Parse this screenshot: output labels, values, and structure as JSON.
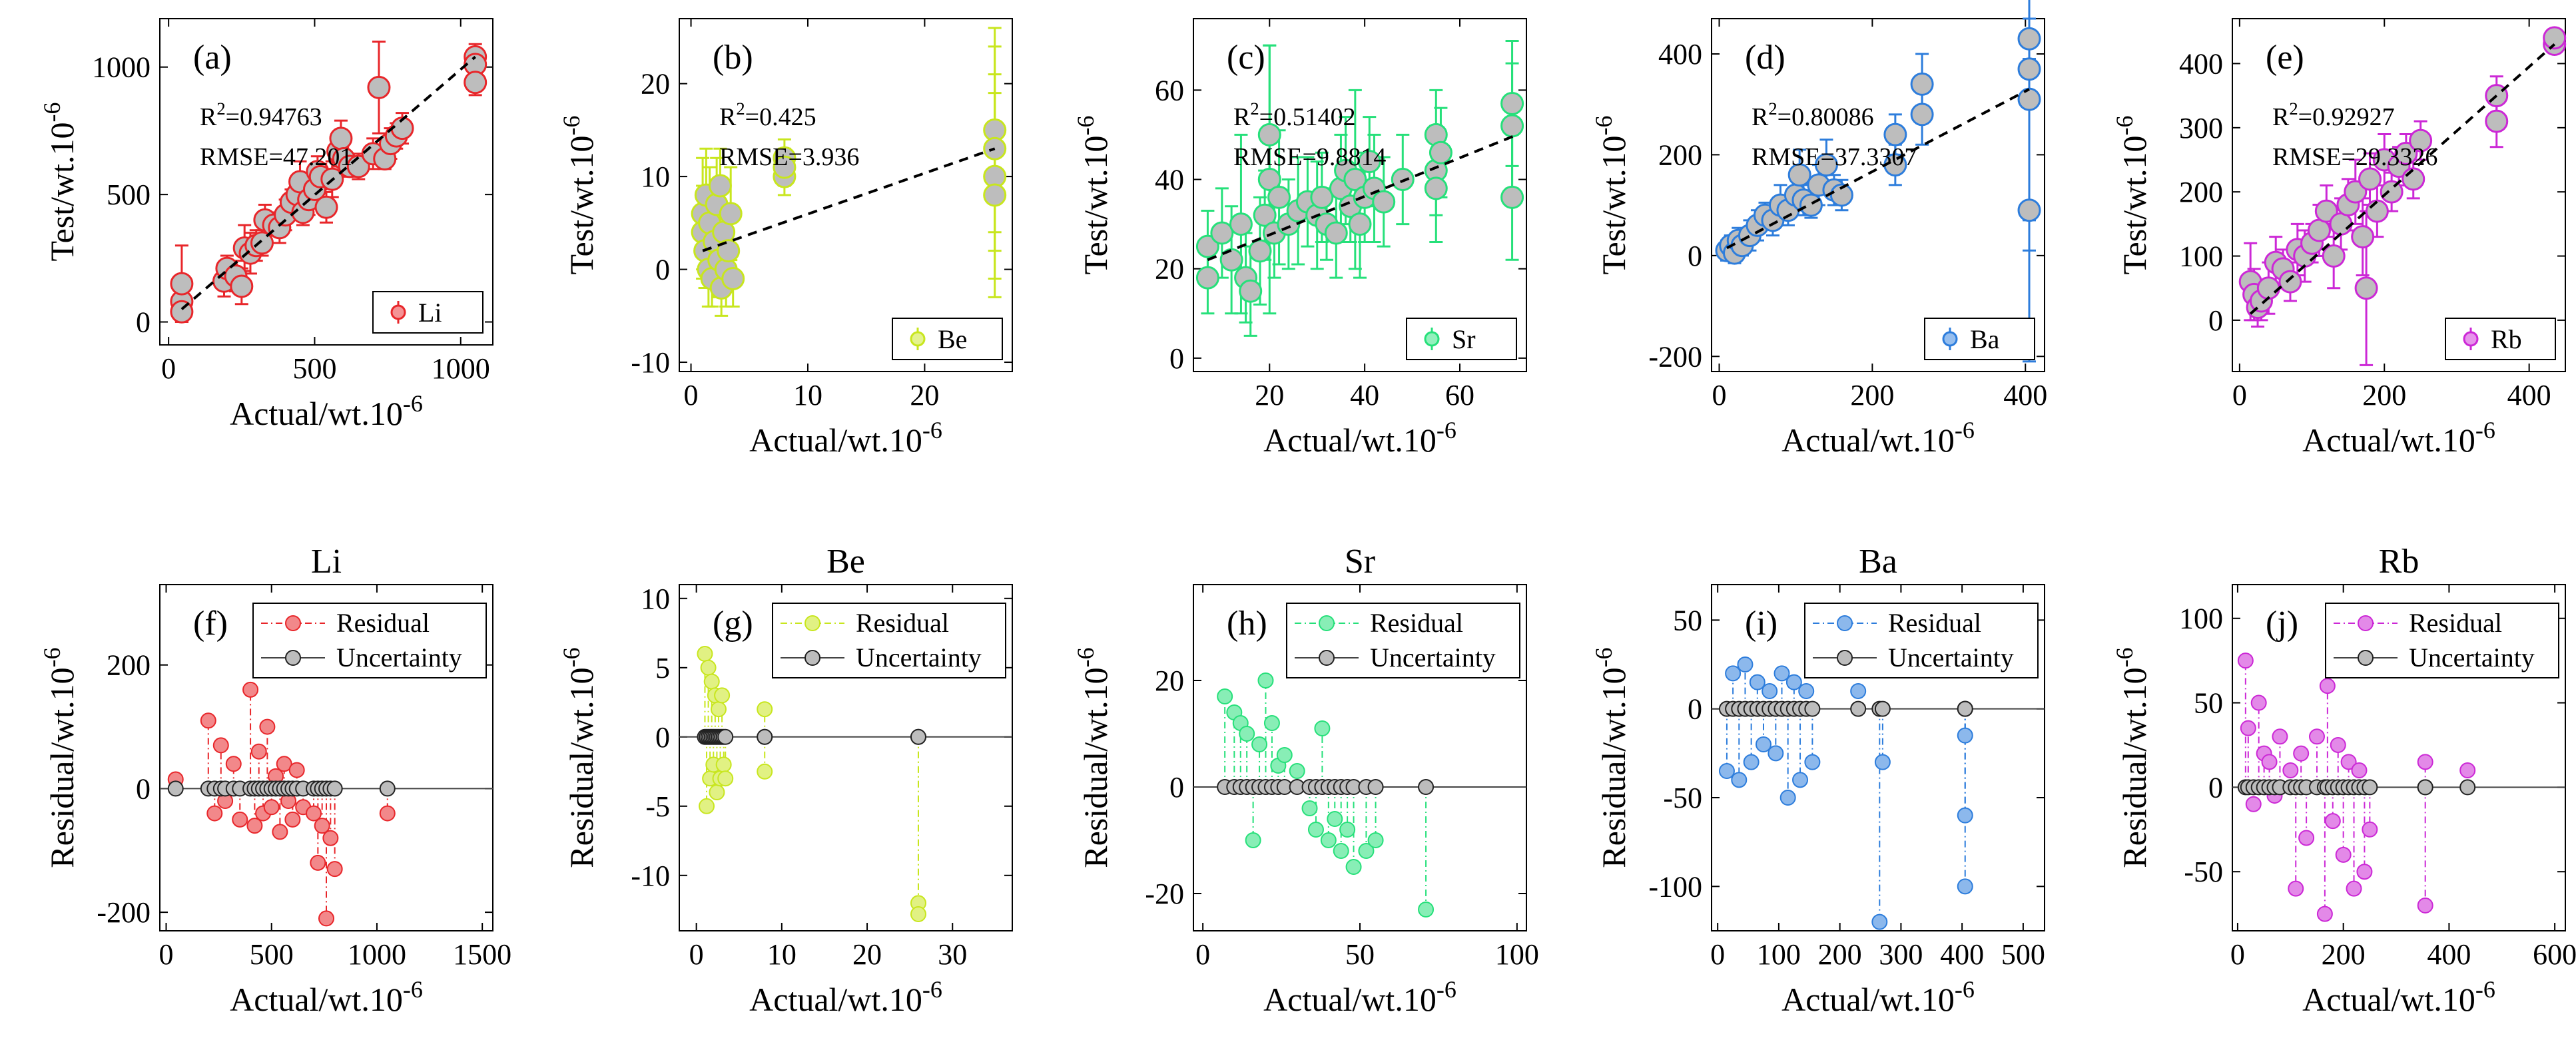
{
  "figure_title": "",
  "chart_data": [
    {
      "type": "scatter",
      "panel": "(a)",
      "element": "Li",
      "color": "#e8262a",
      "xlabel": "Actual/wt.10^-6",
      "ylabel": "Test/wt.10^-6",
      "xlim": [
        -30,
        1110
      ],
      "ylim": [
        -90,
        1190
      ],
      "xticks": [
        0,
        500,
        1000
      ],
      "yticks": [
        0,
        500,
        1000
      ],
      "r2": "R²=0.94763",
      "rmse": "RMSE=47.201",
      "r2_text": "0.94763",
      "rmse_text": "RMSE=47.201",
      "legend": "Li",
      "fit": [
        [
          45,
          50
        ],
        [
          1050,
          1040
        ]
      ],
      "points": [
        [
          45,
          80,
          60
        ],
        [
          45,
          150,
          150
        ],
        [
          45,
          40,
          40
        ],
        [
          190,
          160,
          60
        ],
        [
          200,
          210,
          50
        ],
        [
          230,
          180,
          60
        ],
        [
          250,
          140,
          70
        ],
        [
          260,
          290,
          90
        ],
        [
          280,
          270,
          80
        ],
        [
          300,
          300,
          60
        ],
        [
          320,
          310,
          50
        ],
        [
          330,
          400,
          60
        ],
        [
          360,
          380,
          40
        ],
        [
          380,
          370,
          60
        ],
        [
          400,
          420,
          60
        ],
        [
          420,
          470,
          50
        ],
        [
          440,
          500,
          60
        ],
        [
          450,
          550,
          80
        ],
        [
          460,
          430,
          50
        ],
        [
          480,
          480,
          60
        ],
        [
          500,
          520,
          60
        ],
        [
          510,
          590,
          60
        ],
        [
          520,
          570,
          50
        ],
        [
          540,
          450,
          60
        ],
        [
          560,
          560,
          70
        ],
        [
          580,
          670,
          60
        ],
        [
          590,
          720,
          70
        ],
        [
          600,
          640,
          60
        ],
        [
          620,
          610,
          40
        ],
        [
          650,
          610,
          50
        ],
        [
          700,
          660,
          60
        ],
        [
          720,
          920,
          180
        ],
        [
          740,
          640,
          40
        ],
        [
          760,
          700,
          60
        ],
        [
          780,
          730,
          50
        ],
        [
          800,
          760,
          60
        ],
        [
          1050,
          1040,
          50
        ],
        [
          1050,
          1010,
          50
        ],
        [
          1050,
          940,
          50
        ]
      ]
    },
    {
      "type": "scatter",
      "panel": "(b)",
      "element": "Be",
      "color": "#c8e61e",
      "xlabel": "Actual/wt.10^-6",
      "ylabel": "Test/wt.10^-6",
      "xlim": [
        -1,
        27.5
      ],
      "ylim": [
        -11,
        27
      ],
      "xticks": [
        0,
        10,
        20
      ],
      "yticks": [
        -10,
        0,
        10,
        20
      ],
      "r2": "R²=0.425",
      "rmse": "RMSE=3.936",
      "r2_text": "0.425",
      "rmse_text": "RMSE=3.936",
      "legend": "Be",
      "fit": [
        [
          1,
          2
        ],
        [
          26,
          13
        ]
      ],
      "points": [
        [
          1,
          6,
          6
        ],
        [
          1,
          4,
          5
        ],
        [
          1.2,
          2,
          4
        ],
        [
          1.3,
          8,
          5
        ],
        [
          1.5,
          0,
          4
        ],
        [
          1.6,
          5,
          6
        ],
        [
          1.8,
          -1,
          3
        ],
        [
          2,
          3,
          4
        ],
        [
          2.2,
          7,
          5
        ],
        [
          2.4,
          1,
          4
        ],
        [
          2.6,
          -2,
          3
        ],
        [
          2.8,
          4,
          5
        ],
        [
          3,
          0,
          4
        ],
        [
          3.2,
          2,
          3
        ],
        [
          3.4,
          6,
          5
        ],
        [
          3.6,
          -1,
          3
        ],
        [
          2.5,
          9,
          4
        ],
        [
          8,
          10,
          2
        ],
        [
          8,
          12,
          2
        ],
        [
          8,
          11,
          2
        ],
        [
          26,
          15,
          11
        ],
        [
          26,
          13,
          11
        ],
        [
          26,
          10,
          11
        ],
        [
          26,
          8,
          11
        ]
      ]
    },
    {
      "type": "scatter",
      "panel": "(c)",
      "element": "Sr",
      "color": "#26e07a",
      "xlabel": "Actual/wt.10^-6",
      "ylabel": "Test/wt.10^-6",
      "xlim": [
        4,
        74
      ],
      "ylim": [
        -3,
        76
      ],
      "xticks": [
        20,
        40,
        60
      ],
      "yticks": [
        0,
        20,
        40,
        60
      ],
      "r2": "R²=0.51402",
      "rmse": "RMSE=9.8814",
      "r2_text": "0.51402",
      "rmse_text": "RMSE=9.8814",
      "legend": "Sr",
      "fit": [
        [
          7,
          22
        ],
        [
          72,
          50
        ]
      ],
      "points": [
        [
          7,
          25,
          8
        ],
        [
          7,
          18,
          8
        ],
        [
          10,
          28,
          10
        ],
        [
          12,
          22,
          12
        ],
        [
          14,
          30,
          20
        ],
        [
          15,
          18,
          10
        ],
        [
          16,
          15,
          10
        ],
        [
          18,
          24,
          12
        ],
        [
          19,
          32,
          10
        ],
        [
          20,
          40,
          30
        ],
        [
          20,
          50,
          20
        ],
        [
          21,
          28,
          10
        ],
        [
          22,
          36,
          15
        ],
        [
          24,
          30,
          10
        ],
        [
          26,
          33,
          12
        ],
        [
          28,
          35,
          10
        ],
        [
          30,
          32,
          12
        ],
        [
          31,
          36,
          10
        ],
        [
          32,
          30,
          8
        ],
        [
          34,
          28,
          10
        ],
        [
          35,
          38,
          12
        ],
        [
          36,
          42,
          12
        ],
        [
          37,
          34,
          8
        ],
        [
          38,
          40,
          20
        ],
        [
          39,
          30,
          12
        ],
        [
          40,
          36,
          10
        ],
        [
          41,
          44,
          10
        ],
        [
          42,
          38,
          12
        ],
        [
          44,
          35,
          10
        ],
        [
          48,
          40,
          10
        ],
        [
          55,
          50,
          10
        ],
        [
          55,
          42,
          10
        ],
        [
          55,
          38,
          12
        ],
        [
          56,
          46,
          10
        ],
        [
          71,
          57,
          14
        ],
        [
          71,
          52,
          14
        ],
        [
          71,
          36,
          14
        ]
      ]
    },
    {
      "type": "scatter",
      "panel": "(d)",
      "element": "Ba",
      "color": "#2d7ddc",
      "xlabel": "Actual/wt.10^-6",
      "ylabel": "Test/wt.10^-6",
      "xlim": [
        -10,
        425
      ],
      "ylim": [
        -230,
        470
      ],
      "xticks": [
        0,
        200,
        400
      ],
      "yticks": [
        -200,
        0,
        200,
        400
      ],
      "r2": "R²=0.80086",
      "rmse": "RMSE=37.3307",
      "r2_text": "0.80086",
      "rmse_text": "RMSE=37.3307",
      "legend": "Ba",
      "fit": [
        [
          10,
          15
        ],
        [
          405,
          330
        ]
      ],
      "points": [
        [
          10,
          10,
          20
        ],
        [
          15,
          20,
          20
        ],
        [
          20,
          5,
          20
        ],
        [
          25,
          30,
          25
        ],
        [
          30,
          20,
          20
        ],
        [
          40,
          40,
          30
        ],
        [
          50,
          60,
          30
        ],
        [
          60,
          80,
          25
        ],
        [
          70,
          70,
          30
        ],
        [
          80,
          100,
          40
        ],
        [
          90,
          90,
          30
        ],
        [
          100,
          120,
          40
        ],
        [
          105,
          160,
          50
        ],
        [
          110,
          110,
          30
        ],
        [
          120,
          100,
          25
        ],
        [
          130,
          140,
          40
        ],
        [
          140,
          180,
          50
        ],
        [
          150,
          130,
          30
        ],
        [
          160,
          120,
          30
        ],
        [
          230,
          180,
          40
        ],
        [
          230,
          240,
          40
        ],
        [
          265,
          280,
          60
        ],
        [
          265,
          340,
          60
        ],
        [
          405,
          430,
          40
        ],
        [
          405,
          370,
          300
        ],
        [
          405,
          310,
          300
        ],
        [
          405,
          90,
          300
        ]
      ]
    },
    {
      "type": "scatter",
      "panel": "(e)",
      "element": "Rb",
      "color": "#cc28d6",
      "xlabel": "Actual/wt.10^-6",
      "ylabel": "Test/wt.10^-6",
      "xlim": [
        -10,
        450
      ],
      "ylim": [
        -80,
        470
      ],
      "xticks": [
        0,
        200,
        400
      ],
      "yticks": [
        0,
        100,
        200,
        300,
        400
      ],
      "r2": "R²=0.92927",
      "rmse": "RMSE=29.3326",
      "r2_text": "0.92927",
      "rmse_text": "RMSE=29.3326",
      "legend": "Rb",
      "fit": [
        [
          15,
          10
        ],
        [
          435,
          430
        ]
      ],
      "points": [
        [
          15,
          60,
          60
        ],
        [
          20,
          40,
          40
        ],
        [
          25,
          20,
          30
        ],
        [
          30,
          30,
          30
        ],
        [
          40,
          50,
          40
        ],
        [
          50,
          90,
          40
        ],
        [
          60,
          80,
          30
        ],
        [
          70,
          60,
          30
        ],
        [
          80,
          110,
          40
        ],
        [
          90,
          100,
          40
        ],
        [
          100,
          120,
          30
        ],
        [
          110,
          140,
          40
        ],
        [
          120,
          170,
          40
        ],
        [
          130,
          100,
          50
        ],
        [
          140,
          150,
          40
        ],
        [
          150,
          180,
          40
        ],
        [
          160,
          200,
          50
        ],
        [
          170,
          130,
          60
        ],
        [
          175,
          50,
          120
        ],
        [
          180,
          220,
          40
        ],
        [
          190,
          170,
          40
        ],
        [
          200,
          250,
          40
        ],
        [
          210,
          200,
          30
        ],
        [
          220,
          240,
          30
        ],
        [
          230,
          260,
          30
        ],
        [
          240,
          220,
          30
        ],
        [
          250,
          280,
          30
        ],
        [
          355,
          350,
          30
        ],
        [
          355,
          310,
          40
        ],
        [
          435,
          430,
          10
        ],
        [
          435,
          440,
          10
        ]
      ]
    },
    {
      "type": "scatter",
      "panel": "(f)",
      "element": "Li",
      "title": "Li",
      "color": "#e8262a",
      "xlabel": "Actual/wt.10^-6",
      "ylabel": "Residual/wt.10^-6",
      "xlim": [
        -30,
        1550
      ],
      "ylim": [
        -230,
        330
      ],
      "xticks": [
        0,
        500,
        1000,
        1500
      ],
      "yticks": [
        -200,
        0,
        200
      ],
      "legend": [
        "Residual",
        "Uncertainty"
      ],
      "residual_x": [
        45,
        200,
        230,
        260,
        280,
        320,
        350,
        400,
        420,
        440,
        460,
        480,
        500,
        520,
        540,
        560,
        580,
        600,
        620,
        650,
        700,
        720,
        740,
        760,
        780,
        800,
        1050
      ],
      "residual_y": [
        15,
        110,
        -40,
        70,
        -20,
        40,
        -50,
        160,
        -60,
        60,
        -40,
        100,
        -30,
        20,
        -70,
        40,
        -20,
        -50,
        30,
        -30,
        -40,
        -120,
        -60,
        -210,
        -80,
        -130,
        -40
      ]
    },
    {
      "type": "scatter",
      "panel": "(g)",
      "element": "Be",
      "title": "Be",
      "color": "#c8e61e",
      "xlabel": "Actual/wt.10^-6",
      "ylabel": "Residual/wt.10^-6",
      "xlim": [
        -2,
        37
      ],
      "ylim": [
        -14,
        11
      ],
      "xticks": [
        0,
        10,
        20,
        30
      ],
      "yticks": [
        -10,
        -5,
        0,
        5,
        10
      ],
      "legend": [
        "Residual",
        "Uncertainty"
      ],
      "residual_x": [
        1,
        1.2,
        1.4,
        1.6,
        1.8,
        2,
        2.2,
        2.4,
        2.6,
        2.8,
        3,
        3.2,
        3.4,
        8,
        8,
        26,
        26
      ],
      "residual_y": [
        6,
        -5,
        5,
        -3,
        4,
        -2,
        3,
        -4,
        2,
        -3,
        3,
        -2,
        -3,
        2,
        -2.5,
        -12,
        -12.8
      ]
    },
    {
      "type": "scatter",
      "panel": "(h)",
      "element": "Sr",
      "title": "Sr",
      "color": "#26e07a",
      "xlabel": "Actual/wt.10^-6",
      "ylabel": "Residual/wt.10^-6",
      "xlim": [
        -3,
        103
      ],
      "ylim": [
        -27,
        38
      ],
      "xticks": [
        0,
        50,
        100
      ],
      "yticks": [
        -20,
        0,
        20
      ],
      "legend": [
        "Residual",
        "Uncertainty"
      ],
      "residual_x": [
        7,
        10,
        12,
        14,
        16,
        18,
        20,
        22,
        24,
        26,
        30,
        34,
        36,
        38,
        40,
        42,
        44,
        46,
        48,
        52,
        55,
        71
      ],
      "residual_y": [
        17,
        14,
        12,
        10,
        -10,
        8,
        20,
        12,
        4,
        6,
        3,
        -4,
        -8,
        11,
        -10,
        -6,
        -12,
        -8,
        -15,
        -12,
        -10,
        -23
      ]
    },
    {
      "type": "scatter",
      "panel": "(i)",
      "element": "Ba",
      "title": "Ba",
      "color": "#2d7ddc",
      "xlabel": "Actual/wt.10^-6",
      "ylabel": "Residual/wt.10^-6",
      "xlim": [
        -10,
        535
      ],
      "ylim": [
        -125,
        70
      ],
      "xticks": [
        0,
        100,
        200,
        300,
        400,
        500
      ],
      "yticks": [
        -100,
        -50,
        0,
        50
      ],
      "legend": [
        "Residual",
        "Uncertainty"
      ],
      "residual_x": [
        15,
        25,
        35,
        45,
        55,
        65,
        75,
        85,
        95,
        105,
        115,
        125,
        135,
        145,
        155,
        230,
        265,
        270,
        405,
        405,
        405
      ],
      "residual_y": [
        -35,
        20,
        -40,
        25,
        -30,
        15,
        -20,
        10,
        -25,
        20,
        -50,
        15,
        -40,
        10,
        -30,
        10,
        -120,
        -30,
        -100,
        -60,
        -15
      ]
    },
    {
      "type": "scatter",
      "panel": "(j)",
      "element": "Rb",
      "title": "Rb",
      "color": "#cc28d6",
      "xlabel": "Actual/wt.10^-6",
      "ylabel": "Residual/wt.10^-6",
      "xlim": [
        -10,
        620
      ],
      "ylim": [
        -85,
        120
      ],
      "xticks": [
        0,
        200,
        400,
        600
      ],
      "yticks": [
        -50,
        0,
        50,
        100
      ],
      "legend": [
        "Residual",
        "Uncertainty"
      ],
      "residual_x": [
        15,
        20,
        30,
        40,
        50,
        60,
        70,
        80,
        100,
        110,
        120,
        130,
        150,
        165,
        170,
        180,
        190,
        200,
        210,
        220,
        230,
        240,
        250,
        355,
        355,
        435
      ],
      "residual_y": [
        75,
        35,
        -10,
        50,
        20,
        15,
        -5,
        30,
        10,
        -60,
        20,
        -30,
        30,
        -75,
        60,
        -20,
        25,
        -40,
        15,
        -60,
        10,
        -50,
        -25,
        -70,
        15,
        10
      ]
    }
  ]
}
